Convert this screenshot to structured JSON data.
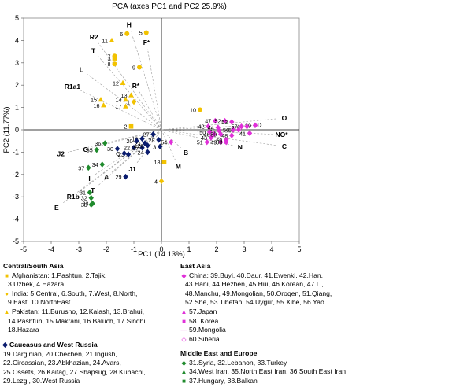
{
  "chart_data": {
    "type": "scatter",
    "title": "PCA (axes PC1 and PC2 25.9%)",
    "xlabel": "PC1 (14.13%)",
    "ylabel": "PC2 (11.77%)",
    "xlim": [
      -5,
      5
    ],
    "ylim": [
      -5,
      5
    ],
    "xticks": [
      "-5",
      "-4",
      "-3",
      "-2",
      "-1",
      "0",
      "1",
      "2",
      "3",
      "4",
      "5"
    ],
    "yticks": [
      "5",
      "4",
      "3",
      "2",
      "1",
      "0",
      "-1",
      "-2",
      "-3",
      "-4",
      "-5"
    ],
    "grid": false,
    "series": [
      {
        "name": "Afghanistan",
        "color": "#f2c200",
        "marker": "square",
        "points": [
          {
            "x": -1.1,
            "y": 0.15,
            "label": "2"
          },
          {
            "x": -1.7,
            "y": 3.2,
            "label": "3"
          },
          {
            "x": 0.1,
            "y": -1.45,
            "label": "18"
          }
        ]
      },
      {
        "name": "India",
        "color": "#f2c200",
        "marker": "circle",
        "points": [
          {
            "x": -0.55,
            "y": 4.35,
            "label": "5"
          },
          {
            "x": -1.25,
            "y": 4.3,
            "label": "6"
          },
          {
            "x": -1.7,
            "y": 3.3,
            "label": "7"
          },
          {
            "x": -1.7,
            "y": 2.95,
            "label": "8"
          },
          {
            "x": -0.8,
            "y": 2.8,
            "label": "9"
          },
          {
            "x": 1.4,
            "y": 0.9,
            "label": "10"
          }
        ]
      },
      {
        "name": "Pakistan",
        "color": "#f2c200",
        "marker": "triangle",
        "points": [
          {
            "x": -1.8,
            "y": 4.0,
            "label": "11"
          },
          {
            "x": -1.4,
            "y": 2.1,
            "label": "12"
          },
          {
            "x": -1.1,
            "y": 1.55,
            "label": "13"
          },
          {
            "x": -1.3,
            "y": 1.35,
            "label": "14"
          },
          {
            "x": -2.2,
            "y": 1.35,
            "label": "15"
          },
          {
            "x": -2.1,
            "y": 1.1,
            "label": "16"
          },
          {
            "x": -1.3,
            "y": 1.05,
            "label": "17"
          }
        ]
      },
      {
        "name": "Afghanistan / Pakistan",
        "color": "#f2c200",
        "marker": "diamond",
        "points": [
          {
            "x": -1.0,
            "y": 1.25,
            "label": "1"
          },
          {
            "x": 0.0,
            "y": -2.3,
            "label": "4"
          }
        ]
      },
      {
        "name": "Caucasus and West Russia",
        "color": "#0a1c6e",
        "marker": "diamond",
        "points": [
          {
            "x": -0.7,
            "y": -0.4,
            "label": "19"
          },
          {
            "x": -0.9,
            "y": -0.5,
            "label": "20"
          },
          {
            "x": -0.6,
            "y": -0.6,
            "label": "21"
          },
          {
            "x": -1.0,
            "y": -0.8,
            "label": "22"
          },
          {
            "x": -1.2,
            "y": -1.1,
            "label": "23"
          },
          {
            "x": -0.5,
            "y": -1.0,
            "label": "24"
          },
          {
            "x": -0.7,
            "y": -0.8,
            "label": "25"
          },
          {
            "x": -0.5,
            "y": -0.7,
            "label": "26"
          },
          {
            "x": -0.3,
            "y": -0.2,
            "label": "27"
          },
          {
            "x": -0.1,
            "y": -0.45,
            "label": "28"
          },
          {
            "x": -1.3,
            "y": -2.1,
            "label": "29"
          },
          {
            "x": -1.6,
            "y": -0.85,
            "label": "30"
          },
          {
            "x": -1.35,
            "y": -1.05,
            "label": "Q"
          },
          {
            "x": -0.05,
            "y": -0.75,
            "label": "3"
          }
        ]
      },
      {
        "name": "Middle East and Europe",
        "color": "#1f8a2c",
        "marker": "diamond",
        "points": [
          {
            "x": -2.6,
            "y": -2.8,
            "label": "31"
          },
          {
            "x": -2.55,
            "y": -3.05,
            "label": "32"
          },
          {
            "x": -2.5,
            "y": -3.3,
            "label": "33"
          },
          {
            "x": -2.15,
            "y": -1.55,
            "label": "34"
          },
          {
            "x": -2.35,
            "y": -0.9,
            "label": "35"
          },
          {
            "x": -2.05,
            "y": -0.6,
            "label": "36"
          },
          {
            "x": -2.65,
            "y": -1.7,
            "label": "37"
          },
          {
            "x": -2.55,
            "y": -3.35,
            "label": "38"
          }
        ]
      },
      {
        "name": "East Asia",
        "color": "#e02fd8",
        "marker": "diamond",
        "points": [
          {
            "x": 3.4,
            "y": 0.2,
            "label": "39"
          },
          {
            "x": 3.1,
            "y": 0.15,
            "label": "40"
          },
          {
            "x": 3.2,
            "y": -0.15,
            "label": "41"
          },
          {
            "x": 1.7,
            "y": 0.15,
            "label": "42"
          },
          {
            "x": 1.8,
            "y": -0.35,
            "label": "43"
          },
          {
            "x": 2.05,
            "y": 0.1,
            "label": "44"
          },
          {
            "x": 2.1,
            "y": -0.05,
            "label": "45"
          },
          {
            "x": 1.9,
            "y": -0.2,
            "label": "46"
          },
          {
            "x": 1.95,
            "y": 0.4,
            "label": "47"
          },
          {
            "x": 2.55,
            "y": -0.25,
            "label": "48"
          },
          {
            "x": 2.15,
            "y": -0.55,
            "label": "49"
          },
          {
            "x": 1.75,
            "y": -0.1,
            "label": "50"
          },
          {
            "x": 1.65,
            "y": -0.55,
            "label": "51"
          },
          {
            "x": 2.3,
            "y": 0.4,
            "label": "52"
          },
          {
            "x": 2.55,
            "y": 0.35,
            "label": "53"
          },
          {
            "x": 0.35,
            "y": -0.55,
            "label": "54"
          },
          {
            "x": 2.8,
            "y": 0.0,
            "label": "55"
          },
          {
            "x": 2.6,
            "y": 0.0,
            "label": "56"
          },
          {
            "x": 2.9,
            "y": 0.15,
            "label": "57"
          },
          {
            "x": 2.35,
            "y": -0.55,
            "label": "58"
          },
          {
            "x": 2.15,
            "y": -0.2,
            "label": "59"
          },
          {
            "x": 2.35,
            "y": -0.45,
            "label": "60"
          }
        ]
      }
    ],
    "vectors": [
      {
        "label": "H",
        "x": -1.1,
        "y": 4.4
      },
      {
        "label": "R2",
        "x": -2.3,
        "y": 3.9
      },
      {
        "label": "T",
        "x": -2.3,
        "y": 3.3
      },
      {
        "label": "F*",
        "x": -0.5,
        "y": 3.6
      },
      {
        "label": "L",
        "x": -2.7,
        "y": 2.5
      },
      {
        "label": "R1a1",
        "x": -3.0,
        "y": 1.8
      },
      {
        "label": "R*",
        "x": -0.8,
        "y": 1.7
      },
      {
        "label": "O",
        "x": 4.2,
        "y": 0.5
      },
      {
        "label": "D",
        "x": 3.3,
        "y": 0.2
      },
      {
        "label": "NO*",
        "x": 4.1,
        "y": -0.2
      },
      {
        "label": "N",
        "x": 2.6,
        "y": -0.7
      },
      {
        "label": "C",
        "x": 4.2,
        "y": -0.7
      },
      {
        "label": "B",
        "x": 0.7,
        "y": -0.8
      },
      {
        "label": "M",
        "x": 0.5,
        "y": -1.35
      },
      {
        "label": "J1",
        "x": -0.9,
        "y": -1.5
      },
      {
        "label": "J2",
        "x": -3.4,
        "y": -1.0
      },
      {
        "label": "G",
        "x": -2.5,
        "y": -0.8
      },
      {
        "label": "A",
        "x": -1.8,
        "y": -1.9
      },
      {
        "label": "I",
        "x": -2.4,
        "y": -2.0
      },
      {
        "label": "T",
        "x": -2.3,
        "y": -2.5
      },
      {
        "label": "R1b",
        "x": -3.0,
        "y": -2.8
      },
      {
        "label": "E",
        "x": -3.6,
        "y": -3.3
      }
    ]
  },
  "legends": {
    "central_south_asia": {
      "heading": "Central/South Asia",
      "rows": [
        {
          "color": "#f2c200",
          "shape": "square",
          "lines": [
            "Afghanistan: 1.Pashtun, 2.Tajik,",
            "3.Uzbek, 4.Hazara"
          ]
        },
        {
          "color": "#f2c200",
          "shape": "circle",
          "lines": [
            "India: 5.Central, 6.South, 7.West, 8.North,",
            "9.East, 10.NorthEast"
          ]
        },
        {
          "color": "#f2c200",
          "shape": "triangle",
          "lines": [
            "Pakistan: 11.Burusho, 12.Kalash, 13.Brahui,",
            "14.Pashtun, 15.Makrani, 16.Baluch, 17.Sindhi,",
            "18.Hazara"
          ]
        }
      ]
    },
    "caucasus": {
      "heading": "Caucasus and West Russia",
      "lines": [
        "19.Darginian, 20.Chechen, 21.Ingush,",
        "22.Circassian, 23.Abkhazian, 24.Avars,",
        "25.Ossets, 26.Kaitag, 27.Shapsug, 28.Kubachi,",
        "29.Lezgi, 30.West Russia"
      ]
    },
    "east_asia": {
      "heading": "East Asia",
      "rows": [
        {
          "color": "#e02fd8",
          "shape": "diamond",
          "lines": [
            "China: 39.Buyi, 40.Daur, 41.Ewenki, 42.Han,",
            "43.Hani, 44.Hezhen, 45.Hui, 46.Korean, 47.Li,",
            "48.Manchu, 49.Mongolian, 50.Oroqen, 51.Qiang,",
            "52.She, 53.Tibetan, 54.Uygur, 55.Xibe, 56.Yao"
          ]
        },
        {
          "color": "#e02fd8",
          "shape": "triangle",
          "lines": [
            "57.Japan"
          ]
        },
        {
          "color": "#e02fd8",
          "shape": "square",
          "lines": [
            "58. Korea"
          ]
        },
        {
          "color": "#e02fd8",
          "shape": "dash",
          "lines": [
            "59.Mongolia"
          ]
        },
        {
          "color": "#e02fd8",
          "shape": "open-diamond",
          "lines": [
            "60.Siberia"
          ]
        }
      ]
    },
    "middle_east": {
      "heading": "Middle East and Europe",
      "rows": [
        {
          "color": "#1f8a2c",
          "shape": "diamond",
          "lines": [
            "31.Syria, 32.Lebanon, 33.Turkey"
          ]
        },
        {
          "color": "#1f8a2c",
          "shape": "triangle",
          "lines": [
            "34.West Iran, 35.North East Iran, 36.South East Iran"
          ]
        },
        {
          "color": "#1f8a2c",
          "shape": "square",
          "lines": [
            "37.Hungary, 38.Balkan"
          ]
        }
      ]
    }
  }
}
